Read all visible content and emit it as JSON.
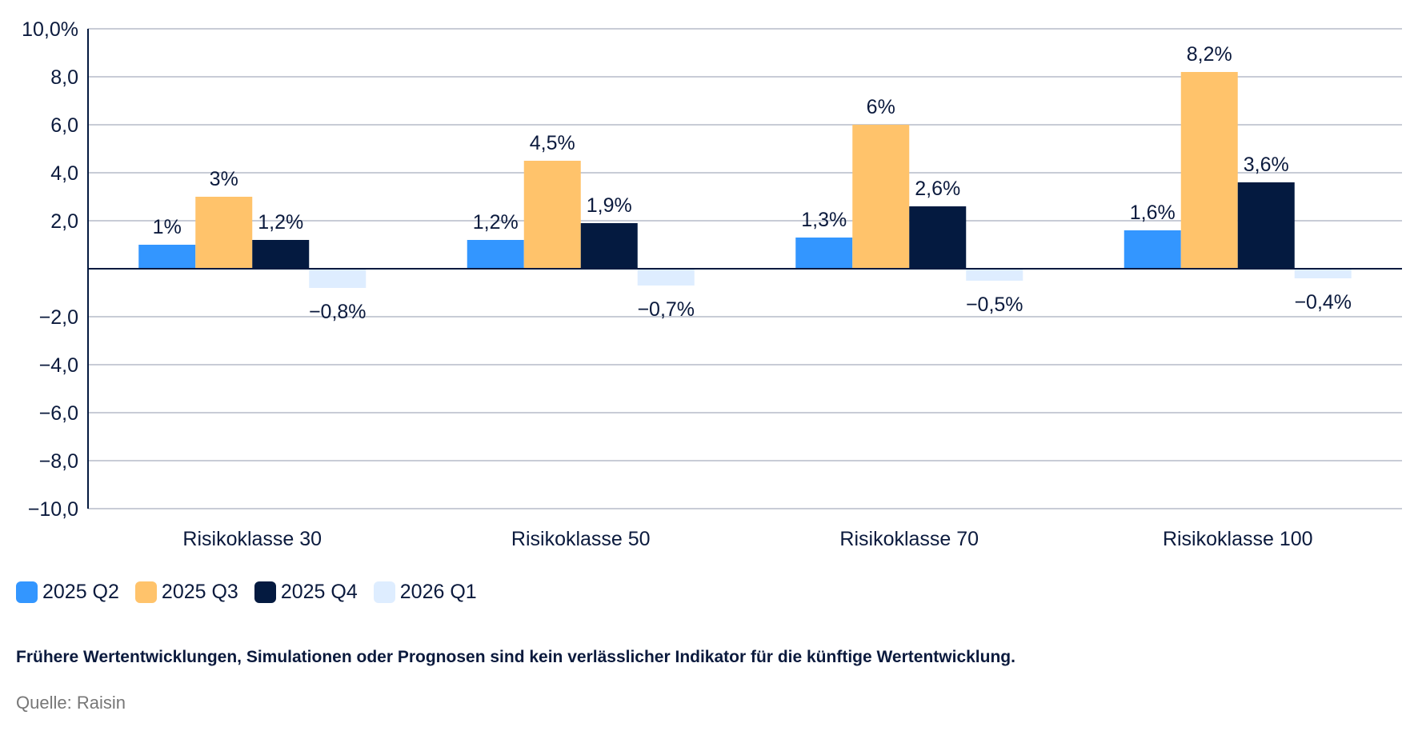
{
  "chart_data": {
    "type": "bar",
    "categories": [
      "Risikoklasse 30",
      "Risikoklasse 50",
      "Risikoklasse 70",
      "Risikoklasse 100"
    ],
    "series": [
      {
        "name": "2025 Q2",
        "color": "#3396ff",
        "values": [
          1.0,
          1.2,
          1.3,
          1.6
        ],
        "labels": [
          "1%",
          "1,2%",
          "1,3%",
          "1,6%"
        ]
      },
      {
        "name": "2025 Q3",
        "color": "#ffc36b",
        "values": [
          3.0,
          4.5,
          6.0,
          8.2
        ],
        "labels": [
          "3%",
          "4,5%",
          "6%",
          "8,2%"
        ]
      },
      {
        "name": "2025 Q4",
        "color": "#041a40",
        "values": [
          1.2,
          1.9,
          2.6,
          3.6
        ],
        "labels": [
          "1,2%",
          "1,9%",
          "2,6%",
          "3,6%"
        ]
      },
      {
        "name": "2026 Q1",
        "color": "#deedff",
        "values": [
          -0.8,
          -0.7,
          -0.5,
          -0.4
        ],
        "labels": [
          "−0,8%",
          "−0,7%",
          "−0,5%",
          "−0,4%"
        ]
      }
    ],
    "ylim": [
      -10,
      10
    ],
    "yticks": [
      10,
      8,
      6,
      4,
      2,
      -2,
      -4,
      -6,
      -8,
      -10
    ],
    "ytick_labels": [
      "10,0%",
      "8,0",
      "6,0",
      "4,0",
      "2,0",
      "−2,0",
      "−4,0",
      "−6,0",
      "−8,0",
      "−10,0"
    ],
    "grid": true,
    "legend_position": "bottom-left"
  },
  "footnote": "Frühere Wertentwicklungen, Simulationen oder Prognosen sind kein verlässlicher Indikator für die künftige Wertentwicklung.",
  "source": "Quelle: Raisin"
}
